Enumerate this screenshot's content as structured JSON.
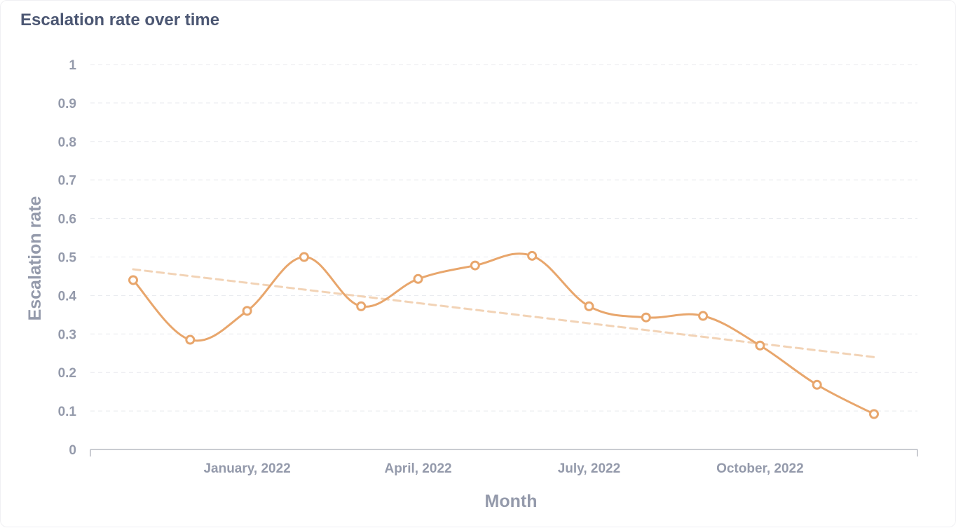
{
  "title": "Escalation rate over time",
  "chart_data": {
    "type": "line",
    "title": "Escalation rate over time",
    "xlabel": "Month",
    "ylabel": "Escalation rate",
    "x": [
      "2021-11-01",
      "2021-12-01",
      "2022-01-01",
      "2022-02-01",
      "2022-03-01",
      "2022-04-01",
      "2022-05-01",
      "2022-06-01",
      "2022-07-01",
      "2022-08-01",
      "2022-09-01",
      "2022-10-01",
      "2022-11-01",
      "2022-12-01"
    ],
    "x_tick_labels": [
      "January, 2022",
      "April, 2022",
      "July, 2022",
      "October, 2022"
    ],
    "x_tick_index": [
      2,
      5,
      8,
      11
    ],
    "ylim": [
      0,
      1
    ],
    "y_ticks": [
      "0",
      "0.1",
      "0.2",
      "0.3",
      "0.4",
      "0.5",
      "0.6",
      "0.7",
      "0.8",
      "0.9",
      "1"
    ],
    "grid": true,
    "series": [
      {
        "values": [
          0.44,
          0.285,
          0.36,
          0.5,
          0.372,
          0.443,
          0.478,
          0.503,
          0.372,
          0.343,
          0.347,
          0.27,
          0.168,
          0.092
        ],
        "color": "#e8a66c"
      }
    ],
    "trendline": {
      "start": 0.468,
      "end": 0.24,
      "color": "#f2d3b6",
      "style": "dashed"
    }
  }
}
